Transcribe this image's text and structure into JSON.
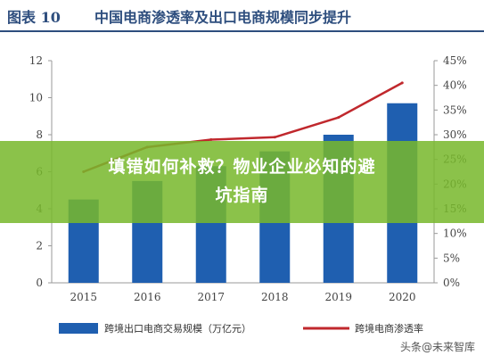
{
  "figure": {
    "number": "图表 10",
    "title": "中国电商渗透率及出口电商规模同步提升"
  },
  "chart_data": {
    "type": "bar",
    "categories": [
      "2015",
      "2016",
      "2017",
      "2018",
      "2019",
      "2020"
    ],
    "series": [
      {
        "name": "跨境出口电商交易规模（万亿元）",
        "type": "bar",
        "axis": "left",
        "color": "#1f5fb0",
        "values": [
          4.5,
          5.5,
          6.3,
          7.1,
          8.0,
          9.7
        ]
      },
      {
        "name": "跨境电商渗透率",
        "type": "line",
        "axis": "right",
        "color": "#c0282d",
        "values": [
          22.5,
          27.5,
          29.0,
          29.5,
          33.5,
          40.5
        ]
      }
    ],
    "y_left": {
      "min": 0,
      "max": 12,
      "ticks": [
        "0",
        "2",
        "4",
        "6",
        "8",
        "10",
        "12"
      ]
    },
    "y_right": {
      "min": 0,
      "max": 45,
      "ticks": [
        "0%",
        "5%",
        "10%",
        "15%",
        "20%",
        "25%",
        "30%",
        "35%",
        "40%",
        "45%"
      ]
    },
    "legend_position": "bottom"
  },
  "banner": {
    "line1": "填错如何补救？物业企业必知的避",
    "line2": "坑指南"
  },
  "watermark": "头条@未来智库"
}
